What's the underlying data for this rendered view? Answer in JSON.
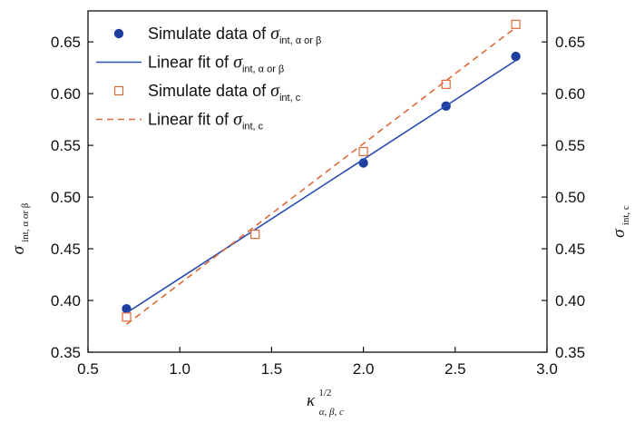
{
  "chart_data": {
    "type": "scatter",
    "x_label": {
      "symbol": "κ",
      "superscript": "1/2",
      "subscript": "α, β, c"
    },
    "y_label_left": {
      "symbol": "σ",
      "subscript": "int, α or β"
    },
    "y_label_right": {
      "symbol": "σ",
      "subscript": "int, c"
    },
    "xlim": [
      0.5,
      3.0
    ],
    "ylim": [
      0.35,
      0.68
    ],
    "x_ticks": [
      "0.5",
      "1.0",
      "1.5",
      "2.0",
      "2.5",
      "3.0"
    ],
    "x_tick_values": [
      0.5,
      1.0,
      1.5,
      2.0,
      2.5,
      3.0
    ],
    "y_ticks": [
      "0.35",
      "0.40",
      "0.45",
      "0.50",
      "0.55",
      "0.60",
      "0.65"
    ],
    "y_tick_values": [
      0.35,
      0.4,
      0.45,
      0.5,
      0.55,
      0.6,
      0.65
    ],
    "grid": false,
    "legend_position": "top-left",
    "series": [
      {
        "name": "Simulate data of σint, α or β",
        "legend_text": "Simulate data of ",
        "legend_sym": "σ",
        "legend_sub": "int, α or β",
        "kind": "points",
        "marker": "filled-circle",
        "color": "#1f3f9f",
        "x": [
          0.71,
          2.0,
          2.45,
          2.83
        ],
        "y": [
          0.392,
          0.533,
          0.588,
          0.636
        ]
      },
      {
        "name": "Linear fit of σint, α or β",
        "legend_text": "Linear fit of ",
        "legend_sym": "σ",
        "legend_sub": "int, α or β",
        "kind": "line",
        "style": "solid",
        "color": "#2b4fb0",
        "x": [
          0.71,
          2.83
        ],
        "y": [
          0.388,
          0.632
        ]
      },
      {
        "name": "Simulate data of σint, c",
        "legend_text": "Simulate data of ",
        "legend_sym": "σ",
        "legend_sub": "int, c",
        "kind": "points",
        "marker": "open-square",
        "color": "#e0693a",
        "x": [
          0.71,
          1.41,
          2.0,
          2.45,
          2.83
        ],
        "y": [
          0.384,
          0.464,
          0.544,
          0.609,
          0.667
        ]
      },
      {
        "name": "Linear fit of σint, c",
        "legend_text": "Linear fit of ",
        "legend_sym": "σ",
        "legend_sub": "int, c",
        "kind": "line",
        "style": "dashed",
        "color": "#e0693a",
        "x": [
          0.71,
          2.83
        ],
        "y": [
          0.377,
          0.664
        ]
      }
    ]
  }
}
